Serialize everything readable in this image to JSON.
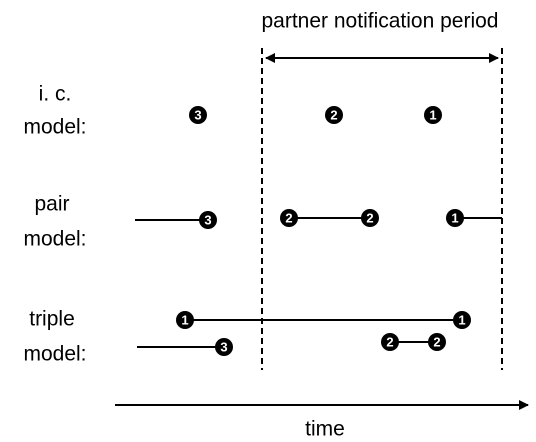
{
  "title": "partner notification period",
  "axis_label": "time",
  "rows": [
    {
      "label": [
        "i. c.",
        "model:"
      ],
      "nodes": [
        "3",
        "2",
        "1"
      ]
    },
    {
      "label": [
        "pair",
        "model:"
      ],
      "nodes": [
        "3",
        "2",
        "2",
        "1"
      ]
    },
    {
      "label": [
        "triple",
        "model:"
      ],
      "nodes": [
        "1",
        "1",
        "3",
        "2",
        "2"
      ]
    }
  ]
}
